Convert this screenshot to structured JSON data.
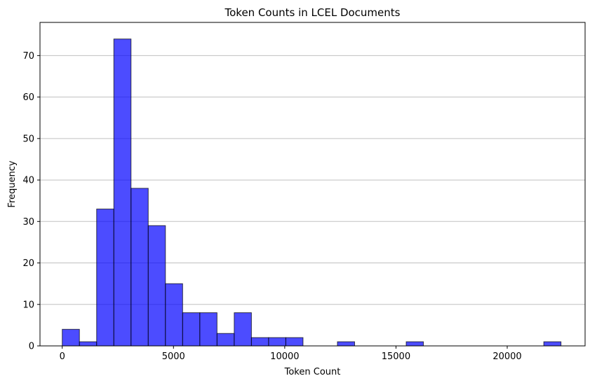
{
  "chart_data": {
    "type": "bar",
    "title": "Token Counts in LCEL Documents",
    "xlabel": "Token Count",
    "ylabel": "Frequency",
    "xlim": [
      -1000,
      23500
    ],
    "ylim": [
      0,
      78
    ],
    "xticks": [
      0,
      5000,
      10000,
      15000,
      20000
    ],
    "yticks": [
      0,
      10,
      20,
      30,
      40,
      50,
      60,
      70
    ],
    "grid": "y",
    "bar_color": "#0000ff",
    "bar_opacity": 0.7,
    "edge_color": "#000000",
    "bins": [
      {
        "start": 0,
        "end": 773,
        "count": 4
      },
      {
        "start": 773,
        "end": 1546,
        "count": 1
      },
      {
        "start": 1546,
        "end": 2319,
        "count": 33
      },
      {
        "start": 2319,
        "end": 3092,
        "count": 74
      },
      {
        "start": 3092,
        "end": 3865,
        "count": 38
      },
      {
        "start": 3865,
        "end": 4638,
        "count": 29
      },
      {
        "start": 4638,
        "end": 5411,
        "count": 15
      },
      {
        "start": 5411,
        "end": 6184,
        "count": 8
      },
      {
        "start": 6184,
        "end": 6957,
        "count": 8
      },
      {
        "start": 6957,
        "end": 7730,
        "count": 3
      },
      {
        "start": 7730,
        "end": 8503,
        "count": 8
      },
      {
        "start": 8503,
        "end": 9276,
        "count": 2
      },
      {
        "start": 9276,
        "end": 10049,
        "count": 2
      },
      {
        "start": 10049,
        "end": 10822,
        "count": 2
      },
      {
        "start": 10822,
        "end": 11595,
        "count": 0
      },
      {
        "start": 11595,
        "end": 12368,
        "count": 0
      },
      {
        "start": 12368,
        "end": 13141,
        "count": 1
      },
      {
        "start": 13141,
        "end": 13914,
        "count": 0
      },
      {
        "start": 13914,
        "end": 14687,
        "count": 0
      },
      {
        "start": 14687,
        "end": 15460,
        "count": 0
      },
      {
        "start": 15460,
        "end": 16233,
        "count": 1
      },
      {
        "start": 16233,
        "end": 17006,
        "count": 0
      },
      {
        "start": 17006,
        "end": 17779,
        "count": 0
      },
      {
        "start": 17779,
        "end": 18552,
        "count": 0
      },
      {
        "start": 18552,
        "end": 19325,
        "count": 0
      },
      {
        "start": 19325,
        "end": 20098,
        "count": 0
      },
      {
        "start": 20098,
        "end": 20871,
        "count": 0
      },
      {
        "start": 20871,
        "end": 21644,
        "count": 0
      },
      {
        "start": 21644,
        "end": 22417,
        "count": 1
      }
    ]
  }
}
